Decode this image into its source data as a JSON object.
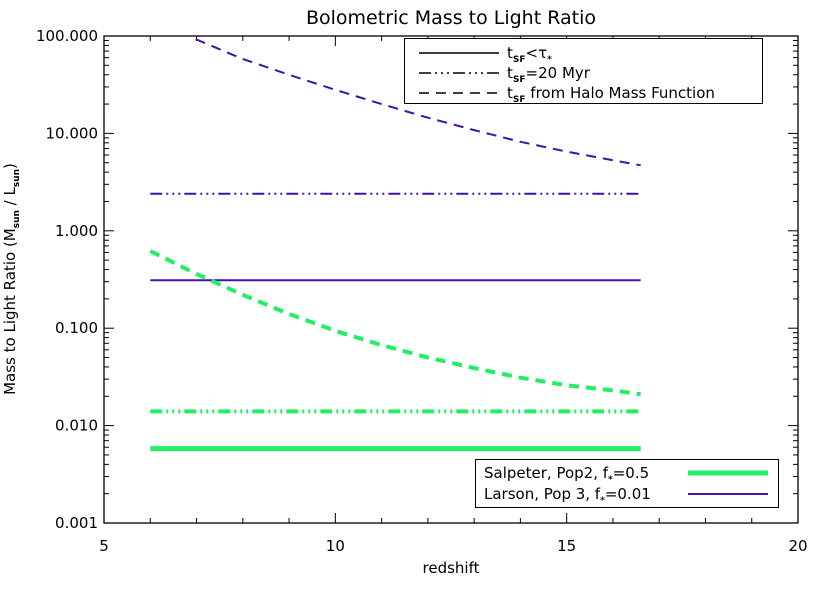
{
  "chart_data": {
    "type": "line",
    "title": "Bolometric Mass to Light Ratio",
    "xlabel": "redshift",
    "ylabel": "Mass to Light Ratio (Msun / Lsun)",
    "ylabel_main": "Mass to Light Ratio (M",
    "ylabel_sub1": "sun",
    "ylabel_mid": " / L",
    "ylabel_sub2": "sun",
    "ylabel_end": ")",
    "xlim": [
      5,
      20
    ],
    "ylim": [
      0.001,
      100
    ],
    "yscale": "log",
    "x_ticks": [
      5,
      10,
      15,
      20
    ],
    "x_tick_labels": [
      "5",
      "10",
      "15",
      "20"
    ],
    "y_ticks": [
      0.001,
      0.01,
      0.1,
      1,
      10,
      100
    ],
    "y_tick_labels": [
      "0.001",
      "0.010",
      "0.100",
      "1.000",
      "10.000",
      "100.000"
    ],
    "style_legend": [
      {
        "label": "t_SF<τ_*",
        "dash": "solid",
        "text_main": "t",
        "text_sub": "SF",
        "text_rest": "<τ",
        "text_sub2": "*"
      },
      {
        "label": "t_SF=20 Myr",
        "dash": "dashdot3",
        "text_main": "t",
        "text_sub": "SF",
        "text_rest": "=20 Myr",
        "text_sub2": ""
      },
      {
        "label": "t_SF from Halo Mass Function",
        "dash": "dashed",
        "text_main": "t",
        "text_sub": "SF",
        "text_rest": " from Halo Mass Function",
        "text_sub2": ""
      }
    ],
    "model_legend": [
      {
        "label": "Salpeter, Pop2, f*=0.5",
        "color": "#22ee66",
        "width": 5,
        "text_main": "Salpeter, Pop2, f",
        "text_sub": "*",
        "text_rest": "=0.5"
      },
      {
        "label": "Larson, Pop 3, f*=0.01",
        "color": "#4411aa",
        "width": 2,
        "text_main": "Larson, Pop 3, f",
        "text_sub": "*",
        "text_rest": "=0.01"
      }
    ],
    "series": [
      {
        "model": "Larson, Pop 3, f*=0.01",
        "style": "dashed",
        "color": "#4411aa",
        "width": 2,
        "x": [
          6.0,
          7.0,
          8.0,
          9.0,
          10.0,
          11.0,
          12.0,
          13.0,
          14.0,
          15.0,
          16.0,
          16.6
        ],
        "y": [
          160,
          92,
          58,
          40,
          28,
          20,
          14.5,
          10.8,
          8.2,
          6.5,
          5.3,
          4.7
        ]
      },
      {
        "model": "Larson, Pop 3, f*=0.01",
        "style": "dashdot3",
        "color": "#4411aa",
        "width": 2,
        "x": [
          6.0,
          16.6
        ],
        "y": [
          2.4,
          2.4
        ]
      },
      {
        "model": "Larson, Pop 3, f*=0.01",
        "style": "solid",
        "color": "#4411aa",
        "width": 2,
        "x": [
          6.0,
          16.6
        ],
        "y": [
          0.31,
          0.31
        ]
      },
      {
        "model": "Salpeter, Pop2, f*=0.5",
        "style": "dashed",
        "color": "#22ee66",
        "width": 4,
        "x": [
          6.0,
          7.0,
          8.0,
          9.0,
          10.0,
          11.0,
          12.0,
          13.0,
          14.0,
          15.0,
          16.0,
          16.6
        ],
        "y": [
          0.62,
          0.36,
          0.22,
          0.14,
          0.094,
          0.067,
          0.05,
          0.039,
          0.031,
          0.026,
          0.023,
          0.021
        ]
      },
      {
        "model": "Salpeter, Pop2, f*=0.5",
        "style": "dashdot3",
        "color": "#22ee66",
        "width": 4,
        "x": [
          6.0,
          16.6
        ],
        "y": [
          0.014,
          0.014
        ]
      },
      {
        "model": "Salpeter, Pop2, f*=0.5",
        "style": "solid",
        "color": "#22ee66",
        "width": 5,
        "x": [
          6.0,
          16.6
        ],
        "y": [
          0.0058,
          0.0058
        ]
      }
    ]
  }
}
